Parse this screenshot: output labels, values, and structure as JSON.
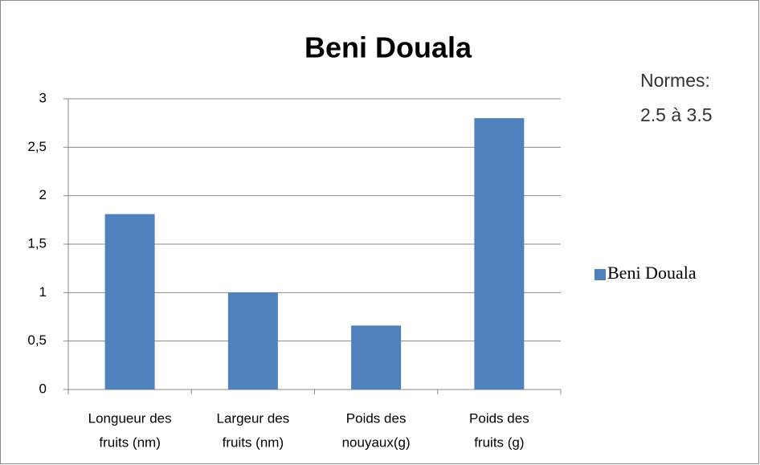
{
  "chart_data": {
    "type": "bar",
    "title": "Beni Douala",
    "annotation": [
      "Normes:",
      "2.5 à 3.5"
    ],
    "categories": [
      [
        "Longueur des",
        "fruits  (nm)"
      ],
      [
        "Largeur des",
        "fruits (nm)"
      ],
      [
        "Poids des",
        "nouyaux(g)"
      ],
      [
        "Poids des",
        "fruits  (g)"
      ]
    ],
    "series": [
      {
        "name": "Beni Douala",
        "color": "#4f81bd",
        "values": [
          1.81,
          1.0,
          0.66,
          2.8
        ]
      }
    ],
    "ylim": [
      0,
      3
    ],
    "yticks": [
      0,
      {
        "value": 0.5,
        "label": "0,5"
      },
      1,
      {
        "value": 1.5,
        "label": "1,5"
      },
      2,
      {
        "value": 2.5,
        "label": "2,5"
      },
      3
    ],
    "grid": true,
    "legend": "right"
  }
}
